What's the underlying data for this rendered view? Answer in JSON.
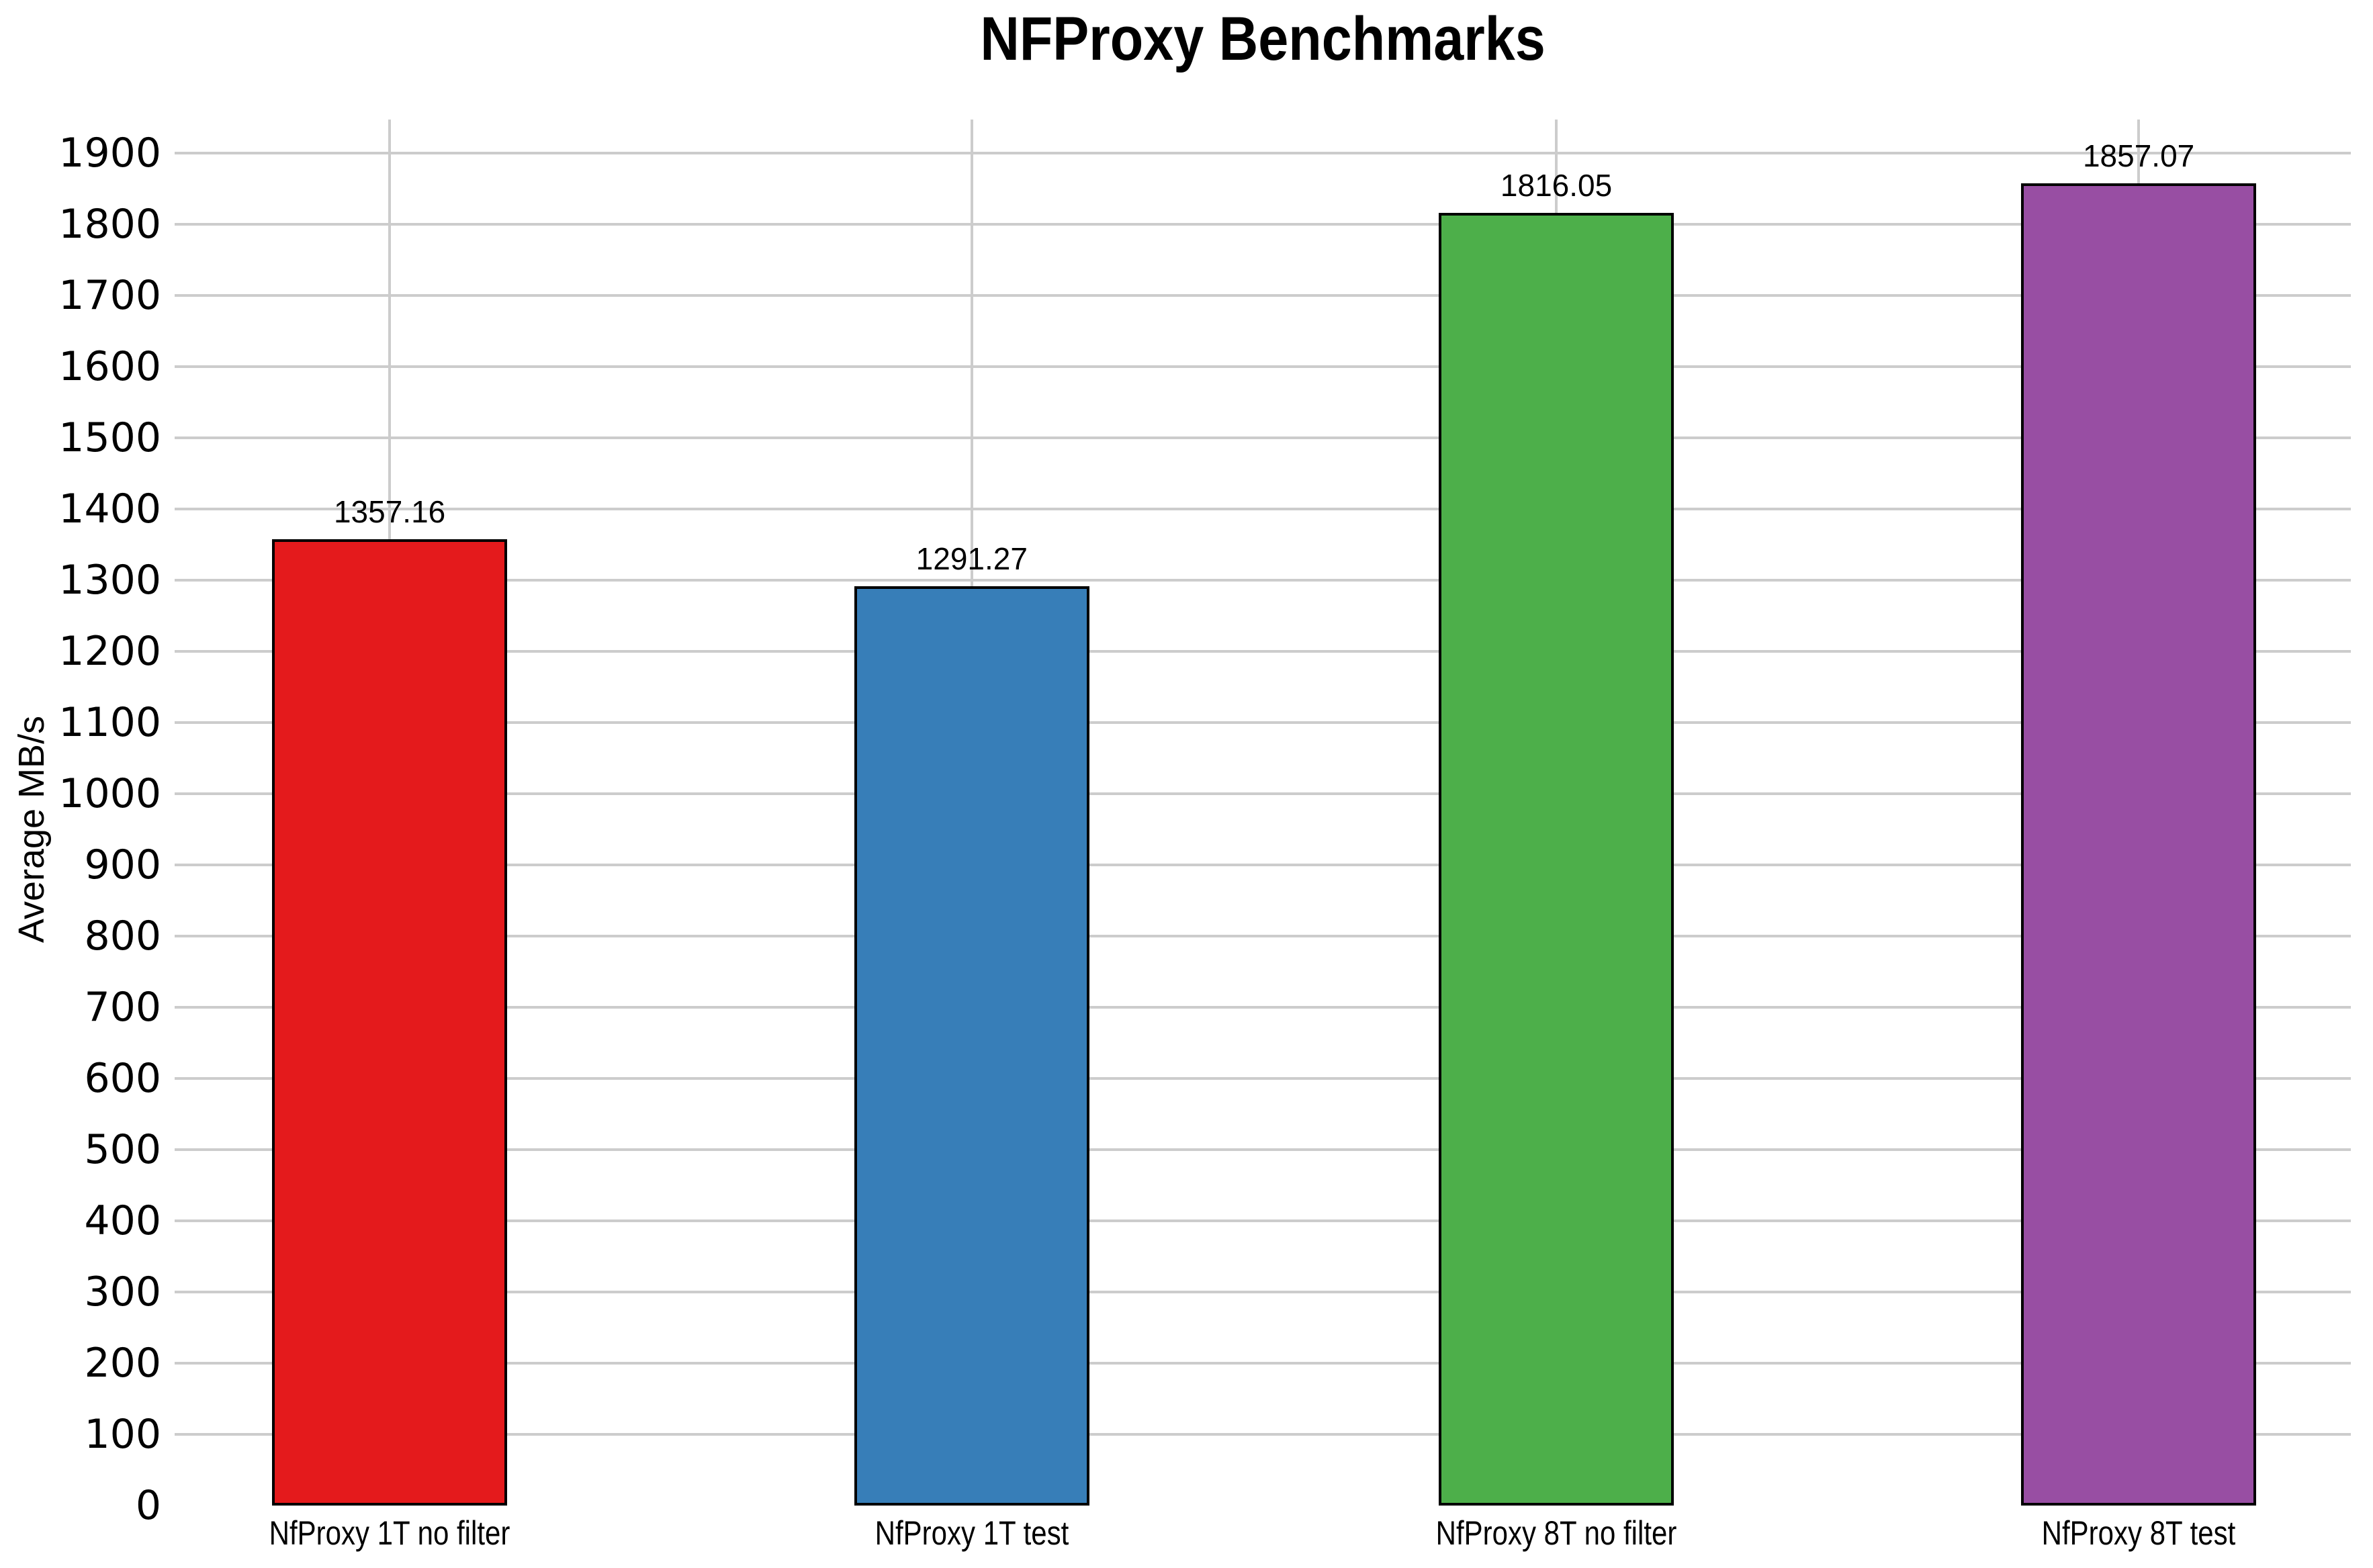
{
  "title": "NFProxy Benchmarks",
  "y_axis_label": "Average MB/s",
  "chart_data": {
    "type": "bar",
    "title": "NFProxy Benchmarks",
    "categories": [
      "NfProxy 1T no filter",
      "NfProxy 1T test",
      "NfProxy 8T no filter",
      "NfProxy 8T test"
    ],
    "values": [
      1357.16,
      1291.27,
      1816.05,
      1857.07
    ],
    "value_labels": [
      "1357.16",
      "1291.27",
      "1816.05",
      "1857.07"
    ],
    "bar_colors": [
      "#e41a1c",
      "#377eb8",
      "#4daf4a",
      "#984ea3"
    ],
    "bar_border_color": "#000000",
    "xlabel": "",
    "ylabel": "Average MB/s",
    "ylim": [
      0,
      1947
    ],
    "yticks": [
      0,
      100,
      200,
      300,
      400,
      500,
      600,
      700,
      800,
      900,
      1000,
      1100,
      1200,
      1300,
      1400,
      1500,
      1600,
      1700,
      1800,
      1900
    ],
    "grid": "horizontal gridlines at yticks 100-1900; one vertical gridline at each bar center",
    "gridline_color": "#cccccc",
    "background_color": "#ffffff",
    "text_color": "#000000",
    "legend": "none"
  }
}
